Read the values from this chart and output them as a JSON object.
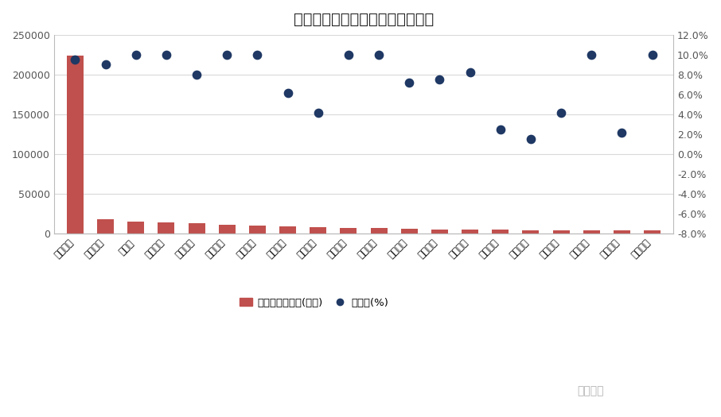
{
  "title": "主力净流入金额及涨跌幅（万元）",
  "categories": [
    "宁德时代",
    "风华高科",
    "亿嘉和",
    "杉杉股份",
    "赣锋锂业",
    "当升科技",
    "宏川智慧",
    "华友魈业",
    "天齐锂业",
    "南京证券",
    "联络互动",
    "新安股份",
    "雅化集团",
    "柳钑股份",
    "潍柴动力",
    "顺网科技",
    "恒瑞医药",
    "网宿科技",
    "华夏幸福",
    "彩讯股份"
  ],
  "bar_values": [
    224000,
    18000,
    15000,
    14000,
    13000,
    11500,
    10500,
    9000,
    8000,
    7500,
    7000,
    6500,
    5500,
    5000,
    5000,
    4800,
    4800,
    4800,
    4500,
    4200
  ],
  "dot_values_pct": [
    9.5,
    9.0,
    10.0,
    10.0,
    8.0,
    10.0,
    10.0,
    6.2,
    4.2,
    10.0,
    10.0,
    7.2,
    7.5,
    8.2,
    2.5,
    1.5,
    4.2,
    10.0,
    2.2,
    10.0
  ],
  "bar_color": "#C0504D",
  "dot_color": "#1F3864",
  "ylim_left": [
    0,
    250000
  ],
  "ylim_right": [
    -8.0,
    12.0
  ],
  "yticks_left": [
    0,
    50000,
    100000,
    150000,
    200000,
    250000
  ],
  "yticks_right": [
    -8.0,
    -6.0,
    -4.0,
    -2.0,
    0.0,
    2.0,
    4.0,
    6.0,
    8.0,
    10.0,
    12.0
  ],
  "legend_bar_label": "主力净流入金额(万元)",
  "legend_dot_label": "涨跌幅(%)",
  "background_color": "#FFFFFF",
  "grid_color": "#D9D9D9",
  "watermark": "市値风云"
}
